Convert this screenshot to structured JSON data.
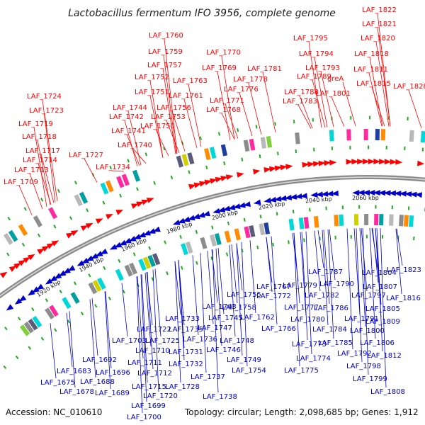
{
  "title": "Lactobacillus fermentum IFO 3956, complete genome",
  "footer": {
    "accession": "Accession: NC_010610",
    "summary": "Topology: circular; Length: 2,098,685 bp; Genes: 1,912"
  },
  "colors": {
    "plus_strand": "#ff0000",
    "minus_strand": "#0000cc",
    "backbone": "#8a8a8a",
    "tick_mark": "#22aa22"
  },
  "ticks": [
    "1920 kbp",
    "1940 kbp",
    "1960 kbp",
    "1980 kbp",
    "2000 kbp",
    "2020 kbp",
    "2040 kbp",
    "2060 kbp"
  ],
  "labels_top": [
    "LAF_1822",
    "LAF_1821",
    "LAF_1820",
    "LAF_1818",
    "LAF_1811",
    "LAF_1815",
    "LAF_1828",
    "LAF_1795",
    "LAF_1794",
    "LAF_1793",
    "LAF_1789",
    "greA",
    "LAF_1788",
    "LAF_1801",
    "LAF_1783",
    "LAF_1781",
    "LAF_1778",
    "LAF_1776",
    "LAF_1770",
    "LAF_1769",
    "LAF_1771",
    "LAF_1768",
    "LAF_1760",
    "LAF_1759",
    "LAF_1757",
    "LAF_1763",
    "LAF_1752",
    "LAF_1751",
    "LAF_1761",
    "LAF_1744",
    "LAF_1756",
    "LAF_1742",
    "LAF_1753",
    "LAF_1741",
    "LAF_1750",
    "LAF_1740",
    "LAF_1724",
    "LAF_1723",
    "LAF_1719",
    "LAF_1718",
    "LAF_1717",
    "LAF_1727",
    "LAF_1714",
    "LAF_1734",
    "LAF_1713",
    "LAF_1709"
  ],
  "labels_bottom": [
    "LAF_1823",
    "LAF_1787",
    "LAF_1804",
    "LAF_1790",
    "LAF_1807",
    "LAF_1797",
    "LAF_1816",
    "LAF_1805",
    "LAF_1791",
    "LAF_1809",
    "LAF_1800",
    "LAF_1806",
    "LAF_1812",
    "LAF_1792",
    "LAF_1798",
    "LAF_1799",
    "LAF_1808",
    "LAF_1779",
    "LAF_1782",
    "LAF_1786",
    "LAF_1777",
    "LAF_1784",
    "LAF_1780",
    "LAF_1785",
    "LAF_1767",
    "LAF_1772",
    "LAF_1773",
    "LAF_1774",
    "LAF_1775",
    "LAF_1766",
    "LAF_1762",
    "LAF_1755",
    "LAF_1758",
    "LAF_1743",
    "LAF_1745",
    "LAF_1747",
    "LAF_1748",
    "LAF_1746",
    "LAF_1749",
    "LAF_1754",
    "LAF_1733",
    "LAF_1735",
    "LAF_1736",
    "LAF_1731",
    "LAF_1732",
    "LAF_1737",
    "LAF_1738",
    "LAF_1722",
    "LAF_1725",
    "LAF_1703",
    "LAF_1710",
    "LAF_1711",
    "LAF_1712",
    "LAF_1715",
    "LAF_1728",
    "LAF_1720",
    "LAF_1692",
    "LAF_1696",
    "LAF_1683",
    "LAF_1688",
    "LAF_1675",
    "LAF_1678",
    "LAF_1689",
    "LAF_1699",
    "LAF_1700"
  ]
}
